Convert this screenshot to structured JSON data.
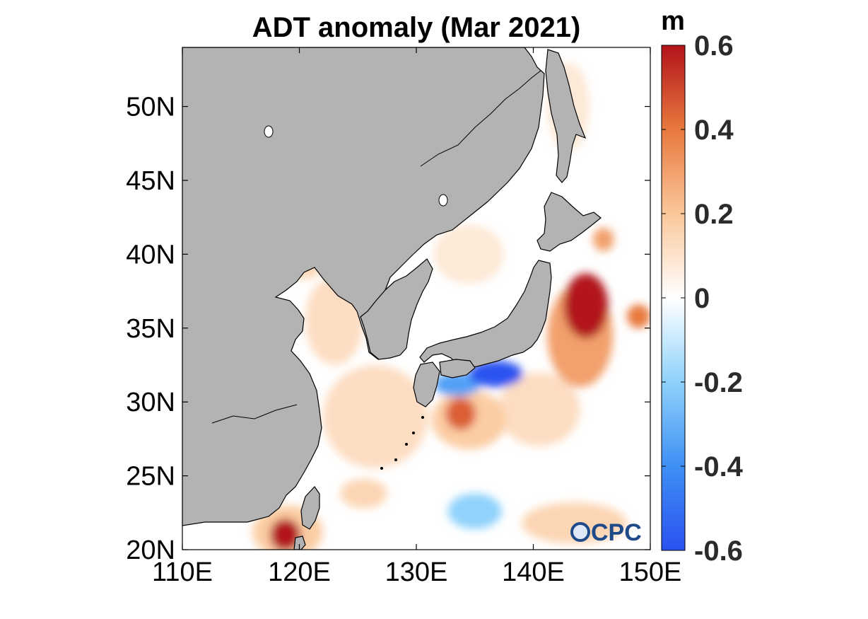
{
  "title": "ADT anomaly (Mar 2021)",
  "map": {
    "lon_range": [
      110,
      150
    ],
    "lat_range": [
      20,
      54
    ],
    "x_ticks": [
      {
        "value": 110,
        "label": "110E"
      },
      {
        "value": 120,
        "label": "120E"
      },
      {
        "value": 130,
        "label": "130E"
      },
      {
        "value": 140,
        "label": "140E"
      },
      {
        "value": 150,
        "label": "150E"
      }
    ],
    "y_ticks": [
      {
        "value": 20,
        "label": "20N"
      },
      {
        "value": 25,
        "label": "25N"
      },
      {
        "value": 30,
        "label": "30N"
      },
      {
        "value": 35,
        "label": "35N"
      },
      {
        "value": 40,
        "label": "40N"
      },
      {
        "value": 45,
        "label": "45N"
      },
      {
        "value": 50,
        "label": "50N"
      }
    ],
    "land_color": "#b3b3b3",
    "ocean_color": "#ffffff",
    "anomaly_patches": [
      {
        "name": "east-china-sea-warm",
        "lon": 126.5,
        "lat": 29.0,
        "rlon": 4.5,
        "rlat": 3.5,
        "value": 0.12
      },
      {
        "name": "yellow-sea-warm",
        "lon": 123.0,
        "lat": 35.5,
        "rlon": 2.5,
        "rlat": 3.0,
        "value": 0.12
      },
      {
        "name": "bohai-warm",
        "lon": 120.5,
        "lat": 39.5,
        "rlon": 1.5,
        "rlat": 1.2,
        "value": 0.14
      },
      {
        "name": "sea-of-japan-warm",
        "lon": 134.5,
        "lat": 40.0,
        "rlon": 3.0,
        "rlat": 2.0,
        "value": 0.08
      },
      {
        "name": "tatar-strait-warm",
        "lon": 143.0,
        "lat": 50.0,
        "rlon": 1.8,
        "rlat": 3.0,
        "value": 0.08
      },
      {
        "name": "kuroshio-extension-hot",
        "lon": 144.5,
        "lat": 36.5,
        "rlon": 1.9,
        "rlat": 2.2,
        "value": 0.6
      },
      {
        "name": "kuroshio-extension-ring",
        "lon": 144.0,
        "lat": 34.5,
        "rlon": 2.8,
        "rlat": 3.5,
        "value": 0.3
      },
      {
        "name": "east-edge-warm",
        "lon": 149.0,
        "lat": 35.8,
        "rlon": 1.0,
        "rlat": 0.8,
        "value": 0.4
      },
      {
        "name": "off-sanriku-warm",
        "lon": 146.0,
        "lat": 41.0,
        "rlon": 0.9,
        "rlat": 0.8,
        "value": 0.3
      },
      {
        "name": "shikoku-cold-core",
        "lon": 136.8,
        "lat": 31.9,
        "rlon": 2.3,
        "rlat": 0.9,
        "value": -0.6
      },
      {
        "name": "shikoku-cold-west",
        "lon": 133.5,
        "lat": 31.2,
        "rlon": 2.0,
        "rlat": 0.8,
        "value": -0.35
      },
      {
        "name": "ryukyu-warm-eddy",
        "lon": 133.8,
        "lat": 29.2,
        "rlon": 1.3,
        "rlat": 1.1,
        "value": 0.45
      },
      {
        "name": "ryukyu-warm-halo",
        "lon": 134.5,
        "lat": 28.8,
        "rlon": 3.2,
        "rlat": 2.0,
        "value": 0.18
      },
      {
        "name": "luzon-strait-warm",
        "lon": 118.8,
        "lat": 21.0,
        "rlon": 1.3,
        "rlat": 1.1,
        "value": 0.6
      },
      {
        "name": "south-china-sea-halo",
        "lon": 119.0,
        "lat": 21.2,
        "rlon": 3.0,
        "rlat": 1.8,
        "value": 0.18
      },
      {
        "name": "philippine-sea-cold",
        "lon": 135.0,
        "lat": 22.6,
        "rlon": 2.3,
        "rlat": 1.2,
        "value": -0.2
      },
      {
        "name": "south-warm-east",
        "lon": 143.5,
        "lat": 21.8,
        "rlon": 4.5,
        "rlat": 1.4,
        "value": 0.15
      },
      {
        "name": "south-warm-west",
        "lon": 125.5,
        "lat": 23.8,
        "rlon": 2.0,
        "rlat": 1.0,
        "value": 0.15
      },
      {
        "name": "izu-warm",
        "lon": 140.5,
        "lat": 29.5,
        "rlon": 3.5,
        "rlat": 2.5,
        "value": 0.12
      }
    ]
  },
  "colorbar": {
    "unit": "m",
    "min": -0.6,
    "max": 0.6,
    "stops": [
      {
        "value": -0.6,
        "color": "#2a52f0"
      },
      {
        "value": -0.4,
        "color": "#3f8ff5"
      },
      {
        "value": -0.2,
        "color": "#8fd2fb"
      },
      {
        "value": 0.0,
        "color": "#ffffff"
      },
      {
        "value": 0.2,
        "color": "#fbc79a"
      },
      {
        "value": 0.4,
        "color": "#e8793e"
      },
      {
        "value": 0.6,
        "color": "#b2121a"
      }
    ],
    "ticks": [
      {
        "value": 0.6,
        "label": "0.6"
      },
      {
        "value": 0.4,
        "label": "0.4"
      },
      {
        "value": 0.2,
        "label": "0.2"
      },
      {
        "value": 0.0,
        "label": "0"
      },
      {
        "value": -0.2,
        "label": "-0.2"
      },
      {
        "value": -0.4,
        "label": "-0.4"
      },
      {
        "value": -0.6,
        "label": "-0.6"
      }
    ]
  },
  "logo": {
    "text": "CPC"
  }
}
